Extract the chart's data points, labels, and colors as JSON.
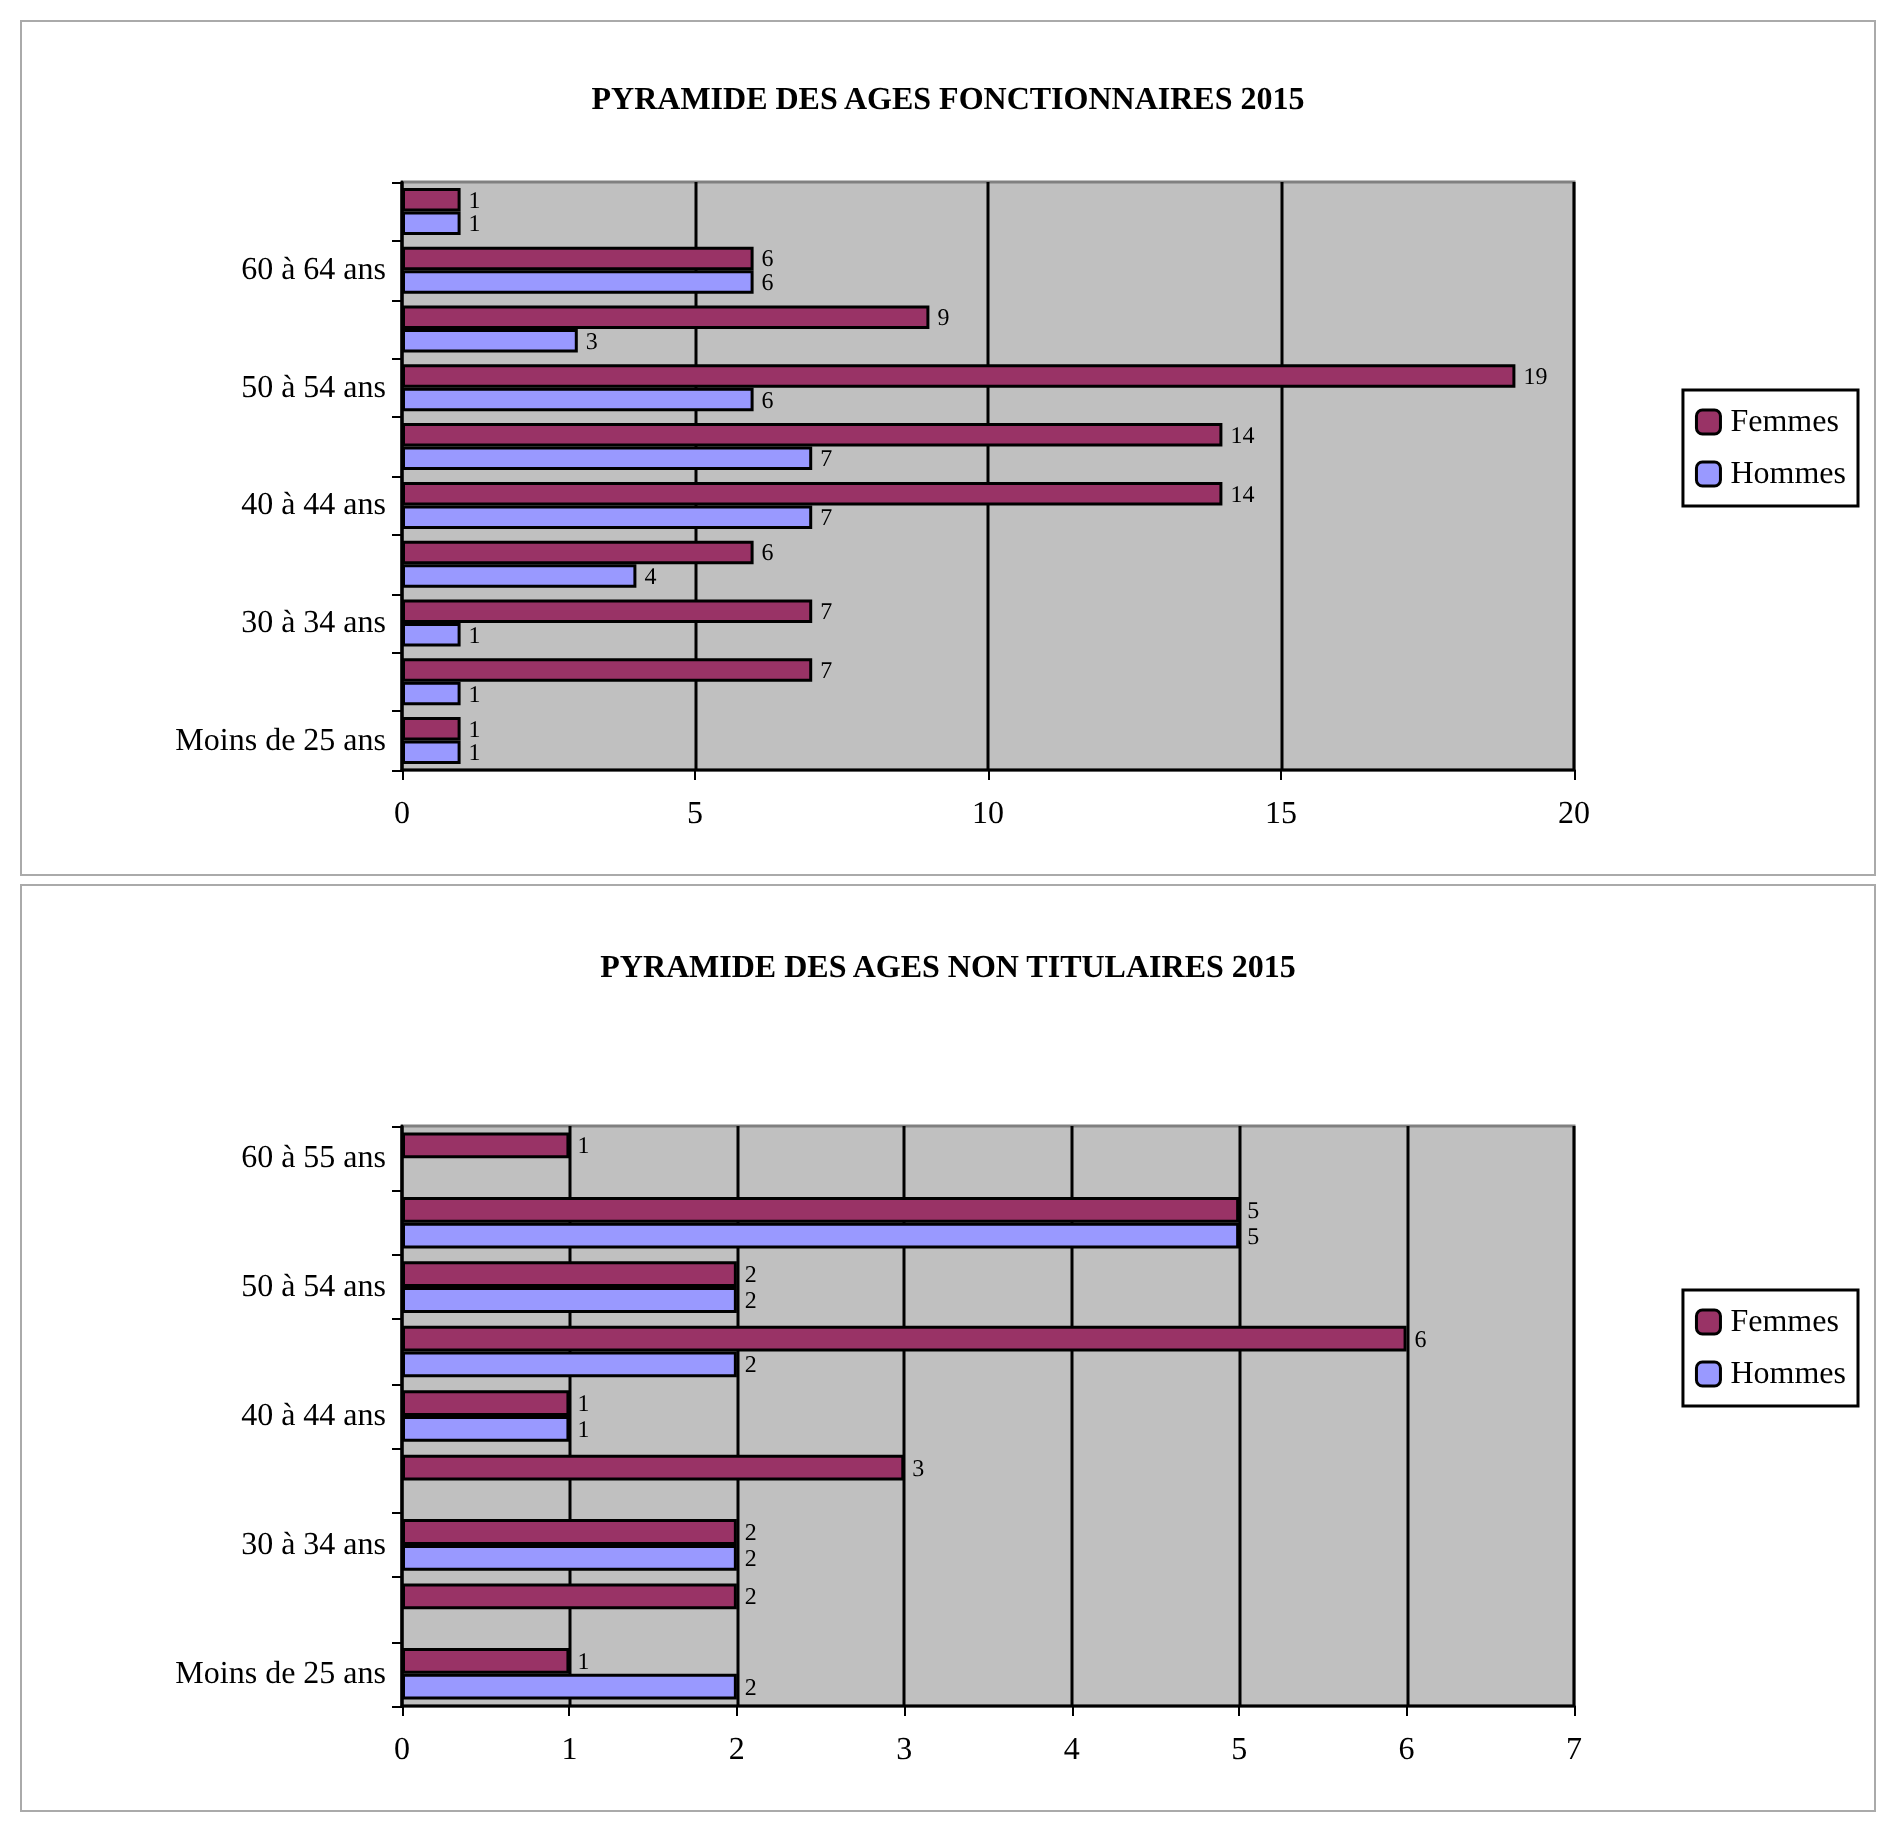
{
  "chart_data": [
    {
      "type": "bar",
      "orientation": "horizontal",
      "title": "PYRAMIDE DES AGES FONCTIONNAIRES 2015",
      "categories": [
        null,
        "60 à 64 ans",
        null,
        "50 à 54 ans",
        null,
        "40 à 44 ans",
        null,
        "30 à 34 ans",
        null,
        "Moins de 25 ans"
      ],
      "series": [
        {
          "name": "Femmes",
          "color": "#993366",
          "values": [
            1,
            6,
            9,
            19,
            14,
            14,
            6,
            7,
            7,
            1
          ]
        },
        {
          "name": "Hommes",
          "color": "#9999ff",
          "values": [
            1,
            6,
            3,
            6,
            7,
            7,
            4,
            1,
            1,
            1
          ]
        }
      ],
      "xlim": [
        0,
        20
      ],
      "xticks": [
        0,
        5,
        10,
        15,
        20
      ],
      "grid": "x",
      "legend": "right",
      "data_labels": true
    },
    {
      "type": "bar",
      "orientation": "horizontal",
      "title": "PYRAMIDE DES AGES NON TITULAIRES 2015",
      "categories": [
        "60 à 55 ans",
        null,
        "50 à 54 ans",
        null,
        "40 à 44 ans",
        null,
        "30 à 34 ans",
        null,
        "Moins de 25 ans"
      ],
      "series": [
        {
          "name": "Femmes",
          "color": "#993366",
          "values": [
            1,
            5,
            2,
            6,
            1,
            3,
            2,
            2,
            1
          ]
        },
        {
          "name": "Hommes",
          "color": "#9999ff",
          "values": [
            null,
            5,
            2,
            2,
            1,
            null,
            2,
            null,
            2
          ]
        }
      ],
      "xlim": [
        0,
        7
      ],
      "xticks": [
        0,
        1,
        2,
        3,
        4,
        5,
        6,
        7
      ],
      "grid": "x",
      "legend": "right",
      "data_labels": true
    }
  ]
}
